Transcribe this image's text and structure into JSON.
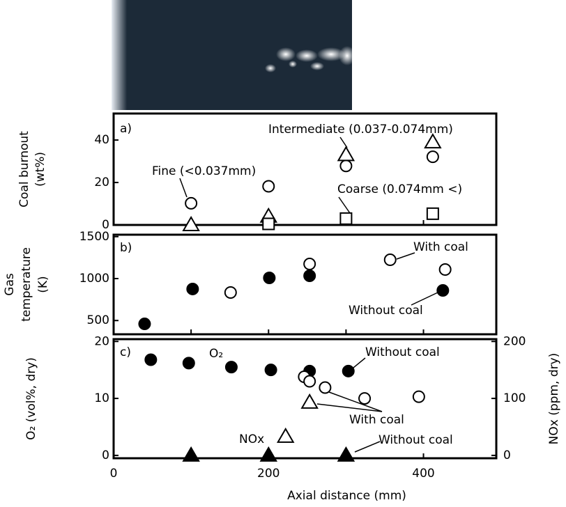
{
  "chart_data": [
    {
      "type": "scatter",
      "ylabel": [
        "Coal burnout",
        "(wt%)"
      ],
      "annotations": [
        "a)"
      ],
      "xlim": [
        0,
        494
      ],
      "xticks": [
        0,
        200,
        400
      ],
      "xminor_ticks": [
        100,
        300
      ],
      "ylim": [
        0,
        52.5
      ],
      "yticks": [
        0,
        20,
        40
      ],
      "series": [
        {
          "name": "Fine (<0.037mm)",
          "color": "#000000",
          "marker": "circle",
          "filled": false,
          "x": [
            100,
            200,
            300,
            412
          ],
          "values": [
            10.2,
            18.2,
            27.8,
            32.1
          ]
        },
        {
          "name": "Intermediate (0.037-0.074mm)",
          "color": "#000000",
          "marker": "triangle",
          "filled": false,
          "x": [
            100,
            200,
            300,
            412
          ],
          "values": [
            0,
            4,
            33,
            39
          ]
        },
        {
          "name": "Coarse (0.074mm <)",
          "color": "#000000",
          "marker": "square",
          "filled": false,
          "x": [
            200,
            300,
            412
          ],
          "values": [
            0.5,
            3,
            5.3
          ]
        }
      ]
    },
    {
      "type": "scatter",
      "ylabel": [
        "Gas",
        "temperature",
        "(K)"
      ],
      "annotations": [
        "b)"
      ],
      "xlim": [
        0,
        494
      ],
      "xticks": [
        0,
        200,
        400
      ],
      "xminor_ticks": [
        100,
        300
      ],
      "ylim": [
        336,
        1523
      ],
      "yticks": [
        500,
        1000,
        1500
      ],
      "series": [
        {
          "name": "With coal",
          "color": "#000000",
          "marker": "circle",
          "filled": false,
          "x": [
            151,
            253,
            357,
            428
          ],
          "values": [
            834,
            1174,
            1224,
            1108
          ]
        },
        {
          "name": "Without coal",
          "color": "#000000",
          "marker": "circle",
          "filled": true,
          "x": [
            40,
            102,
            201,
            253,
            425
          ],
          "values": [
            460,
            876,
            1008,
            1033,
            859
          ]
        }
      ]
    },
    {
      "type": "scatter",
      "ylabel": [
        "O₂ (vol%, dry)"
      ],
      "y2label": "NOx (ppm, dry)",
      "xlabel": "Axial distance (mm)",
      "annotations": [
        "c)",
        "O₂",
        "NOx"
      ],
      "xlim": [
        0,
        494
      ],
      "xticks": [
        0,
        200,
        400
      ],
      "xminor_ticks": [
        100,
        300
      ],
      "ylim": [
        -0.5,
        20.4
      ],
      "yticks": [
        0,
        10,
        20
      ],
      "y2lim": [
        -5,
        204
      ],
      "y2ticks": [
        0,
        100,
        200
      ],
      "series": [
        {
          "name": "Without coal",
          "color": "#000000",
          "marker": "circle",
          "filled": true,
          "x": [
            48,
            97,
            152,
            203,
            253,
            303
          ],
          "values": [
            16.8,
            16.2,
            15.5,
            15.0,
            14.8,
            14.8
          ]
        },
        {
          "name": "With coal",
          "color": "#000000",
          "marker": "circle",
          "filled": false,
          "x": [
            246,
            253,
            273,
            324,
            394
          ],
          "values": [
            13.8,
            13.0,
            11.9,
            10.0,
            10.3
          ]
        },
        {
          "color": "#000000",
          "marker": "triangle",
          "filled": false,
          "axis": "y2",
          "x": [
            222,
            253
          ],
          "values": [
            33,
            93
          ]
        },
        {
          "name": "Without coal",
          "color": "#000000",
          "marker": "triangle",
          "filled": true,
          "axis": "y2",
          "x": [
            100,
            200,
            300
          ],
          "values": [
            0,
            0,
            0
          ]
        }
      ]
    }
  ]
}
